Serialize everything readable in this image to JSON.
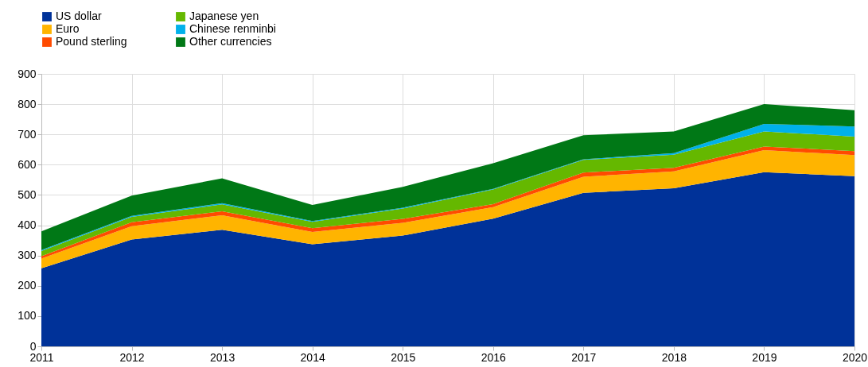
{
  "chart_data": {
    "type": "area",
    "stacked": true,
    "x": [
      2011,
      2012,
      2013,
      2014,
      2015,
      2016,
      2017,
      2018,
      2019,
      2020
    ],
    "series": [
      {
        "name": "US dollar",
        "color": "#003299",
        "values": [
          258,
          353,
          385,
          337,
          366,
          422,
          507,
          522,
          575,
          562
        ]
      },
      {
        "name": "Euro",
        "color": "#ffb400",
        "values": [
          32,
          44,
          48,
          41,
          42,
          38,
          53,
          56,
          73,
          70
        ]
      },
      {
        "name": "Pound sterling",
        "color": "#ff4b00",
        "values": [
          8,
          13,
          13,
          12,
          13,
          10,
          14,
          12,
          12,
          13
        ]
      },
      {
        "name": "Japanese yen",
        "color": "#65b800",
        "values": [
          17,
          18,
          23,
          21,
          34,
          48,
          42,
          43,
          50,
          48
        ]
      },
      {
        "name": "Chinese renminbi",
        "color": "#00b1ea",
        "values": [
          3,
          3,
          4,
          3,
          3,
          2,
          2,
          5,
          25,
          33
        ]
      },
      {
        "name": "Other currencies",
        "color": "#007816",
        "values": [
          62,
          67,
          82,
          53,
          69,
          85,
          79,
          72,
          65,
          54
        ]
      }
    ],
    "xlim": [
      2011,
      2020
    ],
    "xticks": [
      2011,
      2012,
      2013,
      2014,
      2015,
      2016,
      2017,
      2018,
      2019,
      2020
    ],
    "ylim": [
      0,
      900
    ],
    "yticks": [
      0,
      100,
      200,
      300,
      400,
      500,
      600,
      700,
      800,
      900
    ],
    "grid": true,
    "legend": "top left"
  }
}
